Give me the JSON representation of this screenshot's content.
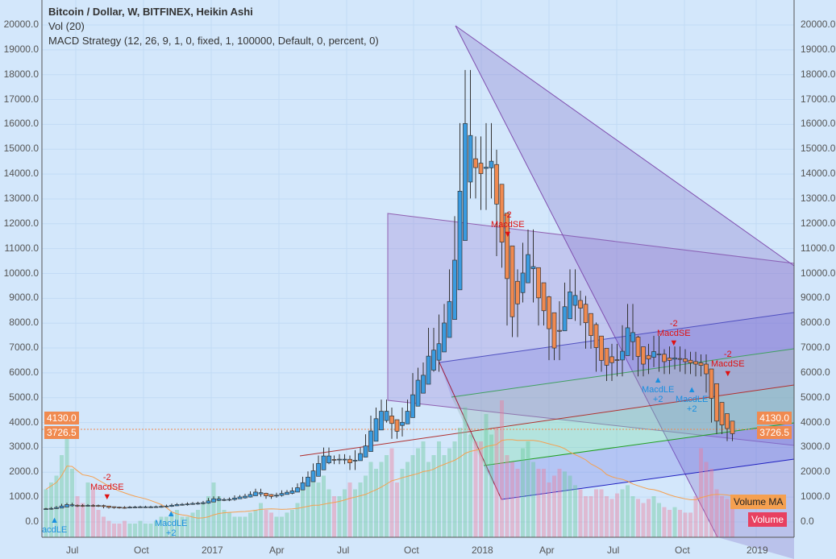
{
  "header": {
    "title": "Bitcoin / Dollar, W, BITFINEX, Heikin Ashi",
    "vol": "Vol (20)",
    "strategy": "MACD Strategy (12, 26, 9, 1, 0, fixed, 1, 100000, Default, 0, percent, 0)"
  },
  "price_axis": [
    "20000.0",
    "19000.0",
    "18000.0",
    "17000.0",
    "16000.0",
    "15000.0",
    "14000.0",
    "13000.0",
    "12000.0",
    "11000.0",
    "10000.0",
    "9000.0",
    "8000.0",
    "7000.0",
    "6000.0",
    "5000.0",
    "4000.0",
    "3000.0",
    "2000.0",
    "1000.0",
    "0.0"
  ],
  "price_labels": {
    "high": "4130.0",
    "last": "3726.5"
  },
  "time_axis": [
    "Jul",
    "Oct",
    "2017",
    "Apr",
    "Jul",
    "Oct",
    "2018",
    "Apr",
    "Jul",
    "Oct",
    "2019"
  ],
  "tags": {
    "volume_ma": "Volume MA",
    "volume": "Volume"
  },
  "signals": {
    "short": "MacdSE",
    "long": "MacdLE",
    "minus2": "-2",
    "plus2": "+2",
    "partial_long": "acdLE"
  },
  "colors": {
    "up": "#3a9be0",
    "down": "#f08a50",
    "bg": "#d3e7fb"
  },
  "chart_data": {
    "type": "candlestick",
    "title": "Bitcoin / Dollar, W, BITFINEX, Heikin Ashi",
    "ylim": [
      0,
      20000
    ],
    "closes": [
      530,
      560,
      600,
      680,
      720,
      660,
      650,
      670,
      665,
      655,
      650,
      590,
      580,
      575,
      575,
      590,
      600,
      605,
      610,
      605,
      610,
      615,
      630,
      650,
      690,
      710,
      705,
      740,
      745,
      760,
      790,
      900,
      960,
      900,
      900,
      920,
      1000,
      1010,
      1060,
      1150,
      1250,
      1100,
      1000,
      1050,
      1100,
      1190,
      1200,
      1300,
      1450,
      1700,
      1900,
      2200,
      2500,
      2800,
      2500,
      2500,
      2550,
      2500,
      2250,
      2700,
      2800,
      3300,
      4000,
      4300,
      4600,
      4300,
      3600,
      3700,
      4300,
      4600,
      5600,
      5800,
      6000,
      7300,
      6500,
      7800,
      8200,
      9500,
      11500,
      15000,
      17000,
      14000,
      14500,
      13500,
      15000,
      14000,
      11500,
      11000,
      8500,
      8000,
      9500,
      10500,
      11000,
      9500,
      8500,
      8500,
      7000,
      7000,
      8300,
      9000,
      9500,
      8700,
      8500,
      7500,
      7500,
      6500,
      6500,
      6100,
      6700,
      6300,
      7400,
      8200,
      7000,
      6300,
      6400,
      6700,
      7000,
      6500,
      6400,
      6600,
      6600,
      6500,
      6400,
      6400,
      6300,
      6300,
      5600,
      4300,
      3800,
      4000,
      3500,
      3600
    ],
    "volume": [
      35,
      40,
      45,
      60,
      80,
      50,
      30,
      25,
      40,
      35,
      20,
      15,
      12,
      10,
      10,
      12,
      10,
      10,
      12,
      10,
      10,
      12,
      15,
      15,
      18,
      20,
      15,
      15,
      18,
      20,
      25,
      30,
      40,
      30,
      20,
      18,
      15,
      15,
      15,
      18,
      20,
      25,
      20,
      18,
      15,
      15,
      18,
      20,
      25,
      35,
      40,
      45,
      40,
      45,
      35,
      30,
      30,
      35,
      40,
      35,
      40,
      45,
      55,
      50,
      55,
      60,
      65,
      40,
      50,
      55,
      60,
      65,
      70,
      55,
      60,
      70,
      60,
      65,
      70,
      80,
      95,
      75,
      70,
      70,
      90,
      75,
      80,
      100,
      60,
      55,
      50,
      65,
      70,
      55,
      50,
      50,
      40,
      45,
      50,
      48,
      45,
      38,
      35,
      30,
      30,
      35,
      35,
      30,
      28,
      32,
      35,
      38,
      30,
      28,
      25,
      28,
      30,
      25,
      22,
      20,
      22,
      20,
      18,
      18,
      30,
      65,
      55,
      50,
      35,
      30,
      28,
      25
    ]
  }
}
